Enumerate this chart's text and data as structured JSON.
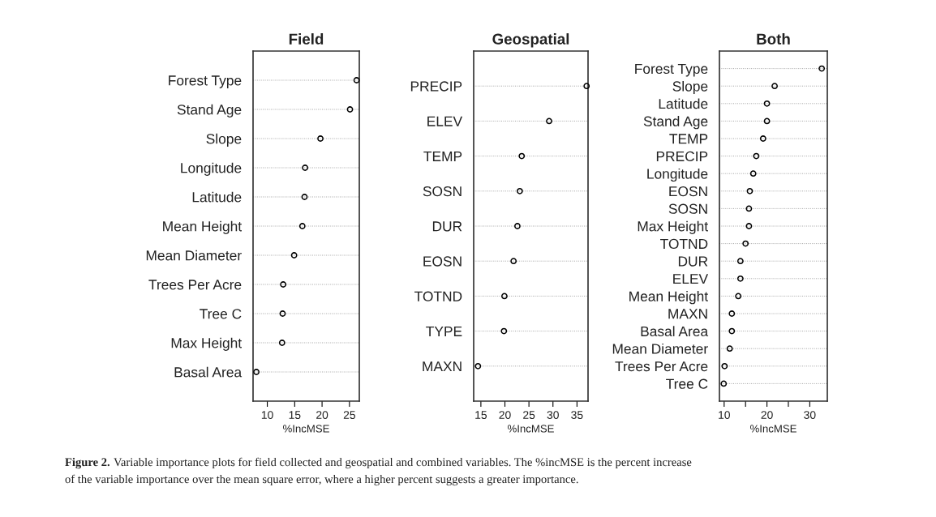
{
  "chart_data": [
    {
      "type": "scatter",
      "title": "Field",
      "xlabel": "%IncMSE",
      "categories": [
        "Forest Type",
        "Stand Age",
        "Slope",
        "Longitude",
        "Latitude",
        "Mean Height",
        "Mean Diameter",
        "Trees Per Acre",
        "Tree C",
        "Max Height",
        "Basal Area"
      ],
      "values": [
        26.3,
        25.1,
        19.7,
        16.9,
        16.8,
        16.4,
        14.9,
        12.9,
        12.8,
        12.7,
        8.0
      ],
      "color": "#000000",
      "marker": "circle",
      "grid": "y",
      "orientation": "horizontal",
      "xlim": [
        7.4,
        26.8
      ],
      "xticks": [
        10,
        15,
        20,
        25
      ],
      "annotations": [
        "Figure 2.",
        "Variable importance plots for field collected and geospatial and combined variables. The %incMSE is the percent increase",
        "of the variable importance over the mean square error, where a higher percent suggests a greater importance."
      ]
    },
    {
      "type": "scatter",
      "title": "Geospatial",
      "xlabel": "%IncMSE",
      "categories": [
        "PRECIP",
        "ELEV",
        "TEMP",
        "SOSN",
        "DUR",
        "EOSN",
        "TOTND",
        "TYPE",
        "MAXN"
      ],
      "values": [
        37.0,
        29.2,
        23.5,
        23.1,
        22.6,
        21.8,
        19.9,
        19.8,
        14.4
      ],
      "color": "#000000",
      "marker": "circle",
      "grid": "y",
      "orientation": "horizontal",
      "xlim": [
        13.5,
        37.3
      ],
      "xticks": [
        15,
        20,
        25,
        30,
        35
      ]
    },
    {
      "type": "scatter",
      "title": "Both",
      "xlabel": "%IncMSE",
      "categories": [
        "Forest Type",
        "Slope",
        "Latitude",
        "Stand Age",
        "TEMP",
        "PRECIP",
        "Longitude",
        "EOSN",
        "SOSN",
        "Max Height",
        "TOTND",
        "DUR",
        "ELEV",
        "Mean Height",
        "MAXN",
        "Basal Area",
        "Mean Diameter",
        "Trees Per Acre",
        "Tree C"
      ],
      "values": [
        32.8,
        21.8,
        20.0,
        20.0,
        19.1,
        17.5,
        16.8,
        16.0,
        15.8,
        15.8,
        15.0,
        13.8,
        13.8,
        13.3,
        11.8,
        11.8,
        11.3,
        10.1,
        9.9
      ],
      "color": "#000000",
      "marker": "circle",
      "grid": "y",
      "orientation": "horizontal",
      "xlim": [
        8.9,
        34.1
      ],
      "xticks": [
        10,
        {
          "value": 15,
          "label": null
        },
        20,
        {
          "value": 25,
          "label": null
        },
        30
      ]
    }
  ]
}
